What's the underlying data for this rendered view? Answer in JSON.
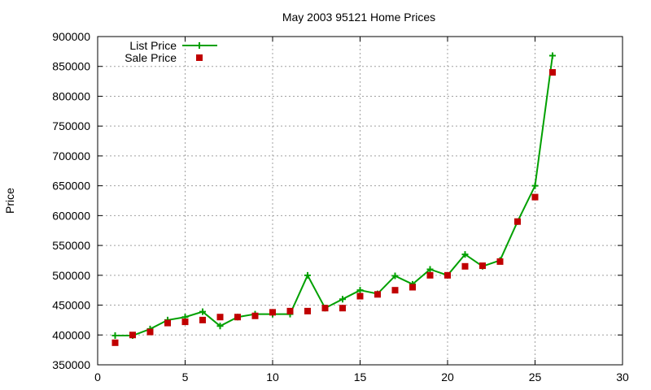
{
  "chart_data": {
    "type": "line",
    "title": "May 2003 95121 Home Prices",
    "xlabel": "",
    "ylabel": "Price",
    "xlim": [
      0,
      30
    ],
    "ylim": [
      350000,
      900000
    ],
    "xticks": [
      0,
      5,
      10,
      15,
      20,
      25,
      30
    ],
    "yticks": [
      350000,
      400000,
      450000,
      500000,
      550000,
      600000,
      650000,
      700000,
      750000,
      800000,
      850000,
      900000
    ],
    "grid": true,
    "legend_position": "top-left",
    "series": [
      {
        "name": "List Price",
        "style": "line-with-plus-markers",
        "color": "#00a000",
        "x": [
          1,
          2,
          3,
          4,
          5,
          6,
          7,
          8,
          9,
          10,
          11,
          12,
          13,
          14,
          15,
          16,
          17,
          18,
          19,
          20,
          21,
          22,
          23,
          24,
          25,
          26
        ],
        "y": [
          399000,
          399000,
          410000,
          425000,
          430000,
          439000,
          415000,
          430000,
          435000,
          435000,
          435000,
          500000,
          445000,
          460000,
          475000,
          469000,
          499000,
          485000,
          510000,
          500000,
          535000,
          515000,
          525000,
          590000,
          650000,
          868000
        ]
      },
      {
        "name": "Sale Price",
        "style": "square-markers",
        "color": "#c00000",
        "x": [
          1,
          2,
          3,
          4,
          5,
          6,
          7,
          8,
          9,
          10,
          11,
          12,
          13,
          14,
          15,
          16,
          17,
          18,
          19,
          20,
          21,
          22,
          23,
          24,
          25,
          26
        ],
        "y": [
          387000,
          400000,
          405000,
          420000,
          422000,
          425000,
          430000,
          430000,
          432000,
          438000,
          440000,
          440000,
          445000,
          445000,
          465000,
          468000,
          475000,
          480000,
          500000,
          500000,
          515000,
          516000,
          523000,
          590000,
          631000,
          840000
        ]
      }
    ]
  }
}
